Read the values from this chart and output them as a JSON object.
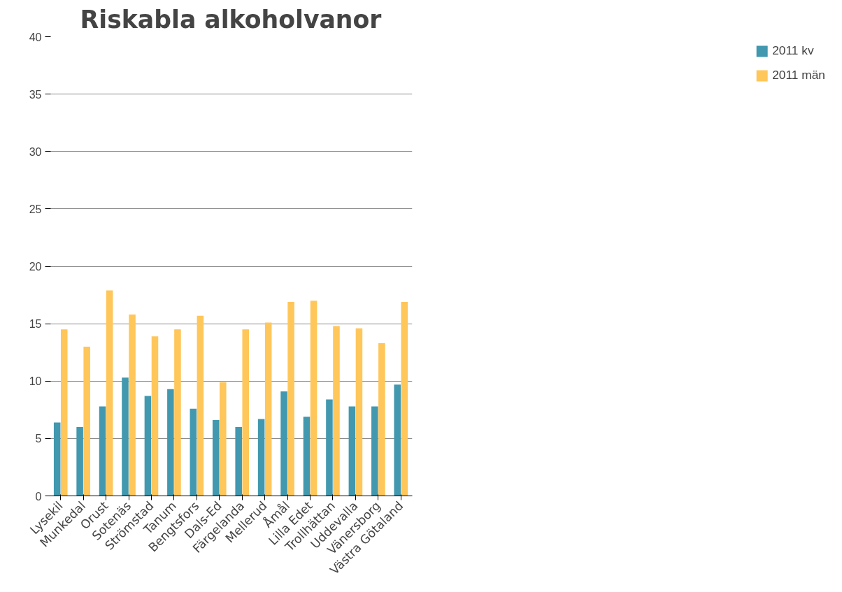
{
  "chart_data": {
    "type": "bar",
    "title": "Riskabla alkoholvanor",
    "categories": [
      "Lysekil",
      "Munkedal",
      "Orust",
      "Sotenäs",
      "Strömstad",
      "Tanum",
      "Bengtsfors",
      "Dals-Ed",
      "Färgelanda",
      "Mellerud",
      "Åmål",
      "Lilla Edet",
      "Trollhättan",
      "Uddevalla",
      "Vänersborg",
      "Västra Götaland"
    ],
    "series": [
      {
        "name": "2011 kv",
        "color": "#4198af",
        "values": [
          6.4,
          6.0,
          7.8,
          10.3,
          8.7,
          9.3,
          7.6,
          6.6,
          6.0,
          6.7,
          9.1,
          6.9,
          8.4,
          7.8,
          7.8,
          9.7
        ]
      },
      {
        "name": "2011 män",
        "color": "#ffc65a",
        "values": [
          14.5,
          13.0,
          17.9,
          15.8,
          13.9,
          14.5,
          15.7,
          9.9,
          14.5,
          15.1,
          16.9,
          17.0,
          14.8,
          14.6,
          13.3,
          16.9
        ]
      }
    ],
    "ylim": [
      0,
      40
    ],
    "yticks": [
      0,
      5,
      10,
      15,
      20,
      25,
      30,
      35,
      40
    ],
    "grid": "y",
    "legend": "right"
  }
}
